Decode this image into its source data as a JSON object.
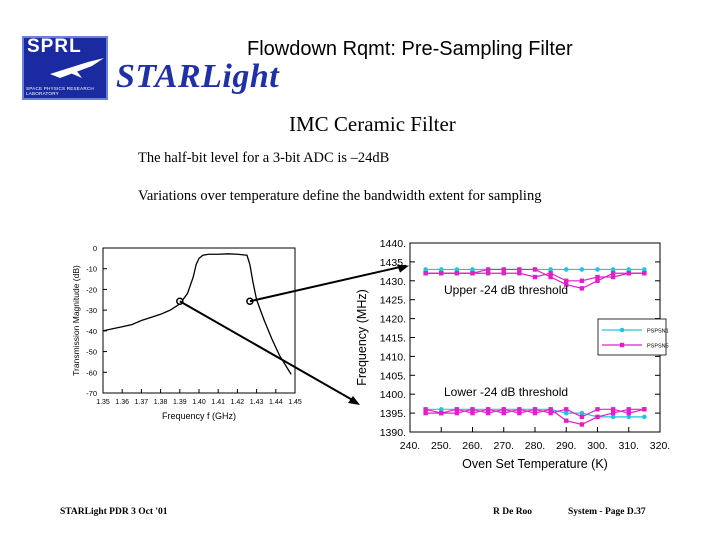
{
  "header": {
    "title": "Flowdown Rqmt:  Pre-Sampling Filter",
    "brand": "STARLight",
    "logo_letters": "SPRL",
    "logo_subtext": "SPACE PHYSICS RESEARCH LABORATORY"
  },
  "body": {
    "subtitle": "IMC Ceramic Filter",
    "line1": "The half-bit level for a 3-bit ADC is –24dB",
    "line2": "Variations over temperature define the bandwidth extent for sampling"
  },
  "footer": {
    "left": "STARLight PDR  3 Oct '01",
    "center": "R De Roo",
    "right": "System - Page D.37"
  },
  "colors": {
    "brand": "#2030a8",
    "logo_bg": "#1a2aa0",
    "series1": "#22c4e0",
    "series2": "#e020c8"
  },
  "chart_data": [
    {
      "type": "line",
      "xlabel": "Frequency  f  (GHz)",
      "ylabel": "Transmission Magnitude (dB)",
      "xlim": [
        1.35,
        1.45
      ],
      "ylim": [
        -70,
        0
      ],
      "x_ticks": [
        "1.35",
        "1.36",
        "1.37",
        "1.38",
        "1.39",
        "1.40",
        "1.41",
        "1.42",
        "1.43",
        "1.44",
        "1.45"
      ],
      "y_ticks": [
        "0",
        "-10",
        "-20",
        "-30",
        "-40",
        "-50",
        "-60",
        "-70"
      ],
      "series": [
        {
          "x": [
            1.35,
            1.355,
            1.36,
            1.365,
            1.37,
            1.375,
            1.38,
            1.385,
            1.39,
            1.394,
            1.397,
            1.3985,
            1.4,
            1.402,
            1.405,
            1.41,
            1.415,
            1.42,
            1.425,
            1.4265,
            1.428,
            1.43,
            1.434,
            1.438,
            1.442,
            1.446,
            1.448
          ],
          "y": [
            -40,
            -39,
            -38,
            -37,
            -35,
            -33.5,
            -32,
            -30,
            -27,
            -22,
            -14,
            -8,
            -5,
            -3.5,
            -3,
            -3,
            -2.8,
            -3,
            -3.5,
            -8,
            -16,
            -25,
            -35,
            -44,
            -52,
            -58,
            -61
          ]
        }
      ],
      "markers": [
        {
          "x": 1.39,
          "y": -25.7
        },
        {
          "x": 1.4265,
          "y": -25.7
        }
      ]
    },
    {
      "type": "line",
      "xlabel": "Oven Set Temperature  (K)",
      "ylabel": "Frequency  (MHz)",
      "xlim": [
        240,
        320
      ],
      "ylim": [
        1390,
        1440
      ],
      "x_ticks": [
        "240.",
        "250.",
        "260.",
        "270.",
        "280.",
        "290.",
        "300.",
        "310.",
        "320."
      ],
      "y_ticks": [
        "1440.",
        "1435.",
        "1430.",
        "1425.",
        "1420.",
        "1415.",
        "1410.",
        "1405.",
        "1400.",
        "1395.",
        "1390."
      ],
      "legend": [
        "PSPSN1",
        "PSPSN5"
      ],
      "legend_position": "right",
      "annotations": [
        "Upper -24 dB threshold",
        "Lower -24 dB threshold"
      ],
      "series": [
        {
          "name": "PSPSN1",
          "group": "upper",
          "x": [
            245,
            250,
            255,
            260,
            265,
            270,
            275,
            280,
            285,
            290,
            295,
            300,
            305,
            310,
            315
          ],
          "y": [
            1433,
            1433,
            1433,
            1433,
            1433,
            1433,
            1433,
            1433,
            1433,
            1433,
            1433,
            1433,
            1433,
            1433,
            1433
          ]
        },
        {
          "name": "PSPSN1",
          "group": "lower",
          "x": [
            245,
            250,
            255,
            260,
            265,
            270,
            275,
            280,
            285,
            290,
            295,
            300,
            305,
            310,
            315
          ],
          "y": [
            1396,
            1396,
            1396,
            1396,
            1396,
            1396,
            1396,
            1396,
            1396,
            1395,
            1395,
            1394,
            1394,
            1394,
            1394
          ]
        },
        {
          "name": "PSPSN5",
          "group": "upper",
          "x": [
            245,
            250,
            255,
            260,
            265,
            270,
            275,
            280,
            285,
            290,
            295,
            300,
            305,
            310,
            315
          ],
          "y": [
            1432,
            1432,
            1432,
            1432,
            1433,
            1433,
            1433,
            1433,
            1431,
            1429,
            1428,
            1430,
            1432,
            1432,
            1432
          ]
        },
        {
          "name": "PSPSN5",
          "group": "upper",
          "x": [
            245,
            250,
            255,
            260,
            265,
            270,
            275,
            280,
            285,
            290,
            295,
            300,
            305,
            310,
            315
          ],
          "y": [
            1432,
            1432,
            1432,
            1432,
            1432,
            1432,
            1432,
            1431,
            1432,
            1430,
            1430,
            1431,
            1431,
            1432,
            1432
          ]
        },
        {
          "name": "PSPSN5",
          "group": "lower",
          "x": [
            245,
            250,
            255,
            260,
            265,
            270,
            275,
            280,
            285,
            290,
            295,
            300,
            305,
            310,
            315
          ],
          "y": [
            1396,
            1395,
            1396,
            1395,
            1396,
            1395,
            1396,
            1395,
            1396,
            1393,
            1392,
            1394,
            1395,
            1396,
            1396
          ]
        },
        {
          "name": "PSPSN5",
          "group": "lower",
          "x": [
            245,
            250,
            255,
            260,
            265,
            270,
            275,
            280,
            285,
            290,
            295,
            300,
            305,
            310,
            315
          ],
          "y": [
            1395,
            1395,
            1395,
            1396,
            1395,
            1396,
            1395,
            1396,
            1395,
            1396,
            1394,
            1396,
            1396,
            1395,
            1396
          ]
        }
      ]
    }
  ]
}
